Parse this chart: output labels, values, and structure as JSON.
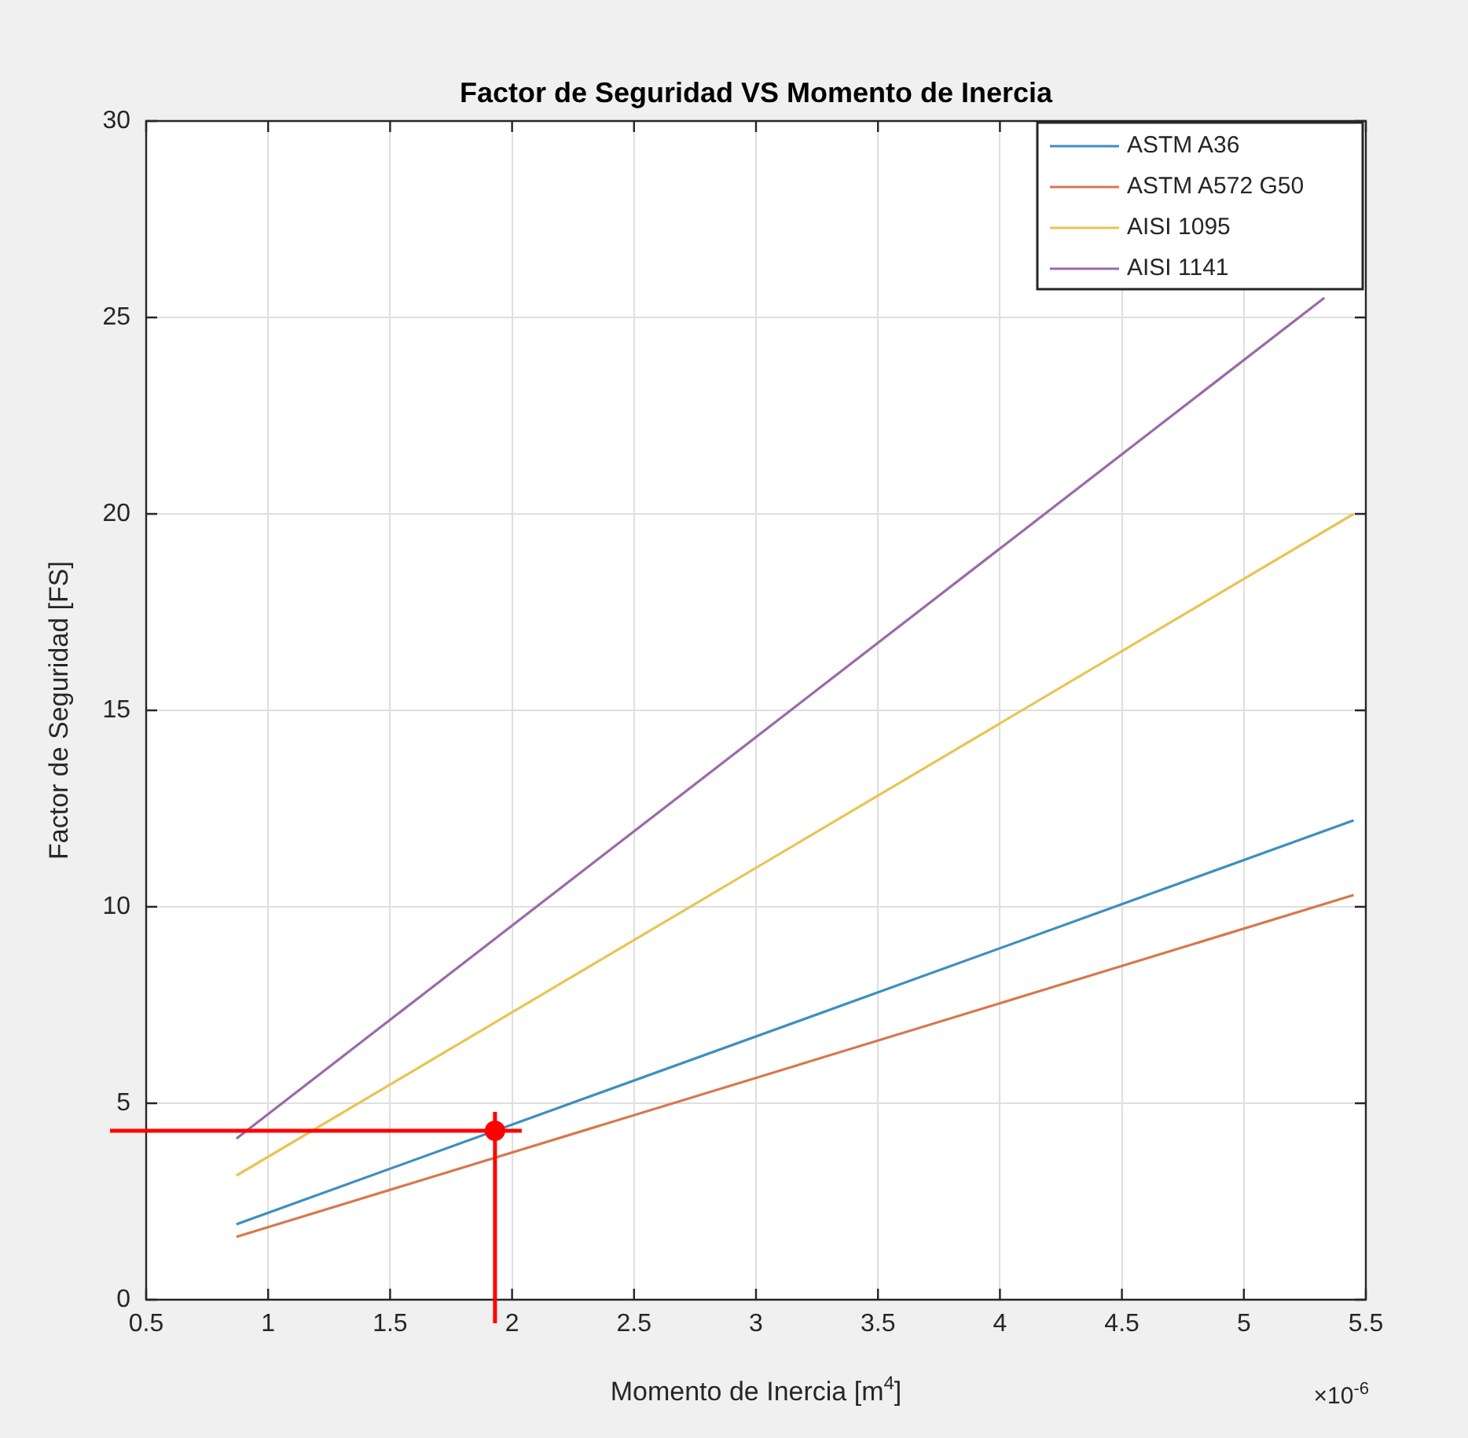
{
  "chart_data": {
    "type": "line",
    "title": "Factor de Seguridad VS Momento de Inercia",
    "xlabel": "Momento de Inercia [m$^{4}$]",
    "ylabel": "Factor de Seguridad [FS]",
    "x": [
      0.87,
      5.45
    ],
    "series": [
      {
        "name": "ASTM A36",
        "color": "#3d8fc0",
        "values": [
          1.92,
          12.2
        ]
      },
      {
        "name": "ASTM A572 G50",
        "color": "#d9774a",
        "values": [
          1.6,
          10.3
        ]
      },
      {
        "name": "AISI 1095",
        "color": "#e8c552",
        "values": [
          3.16,
          20.0
        ]
      },
      {
        "name": "AISI 1141",
        "color": "#9a6aa8",
        "x": [
          0.87,
          5.33
        ],
        "values": [
          4.1,
          25.5
        ]
      },
      {
        "type": "scatter",
        "color": "#ff0000",
        "x": [
          1.93
        ],
        "values": [
          4.3
        ],
        "marker": "circle"
      }
    ],
    "ref_lines": [
      {
        "axis": "x",
        "value": 1.93,
        "color": "#ff0000"
      },
      {
        "axis": "y",
        "value": 4.3,
        "color": "#ff0000"
      }
    ],
    "xlim": [
      0.5,
      5.5
    ],
    "xticks": [
      0.5,
      1,
      1.5,
      2,
      2.5,
      3,
      3.5,
      4,
      4.5,
      5,
      5.5
    ],
    "ylim": [
      0,
      30
    ],
    "yticks": [
      0,
      5,
      10,
      15,
      20,
      25,
      30
    ],
    "annotations": [
      "×10$^{-6}$"
    ],
    "grid": true,
    "legend": "top right",
    "marker": "none",
    "line_style": "solid"
  }
}
